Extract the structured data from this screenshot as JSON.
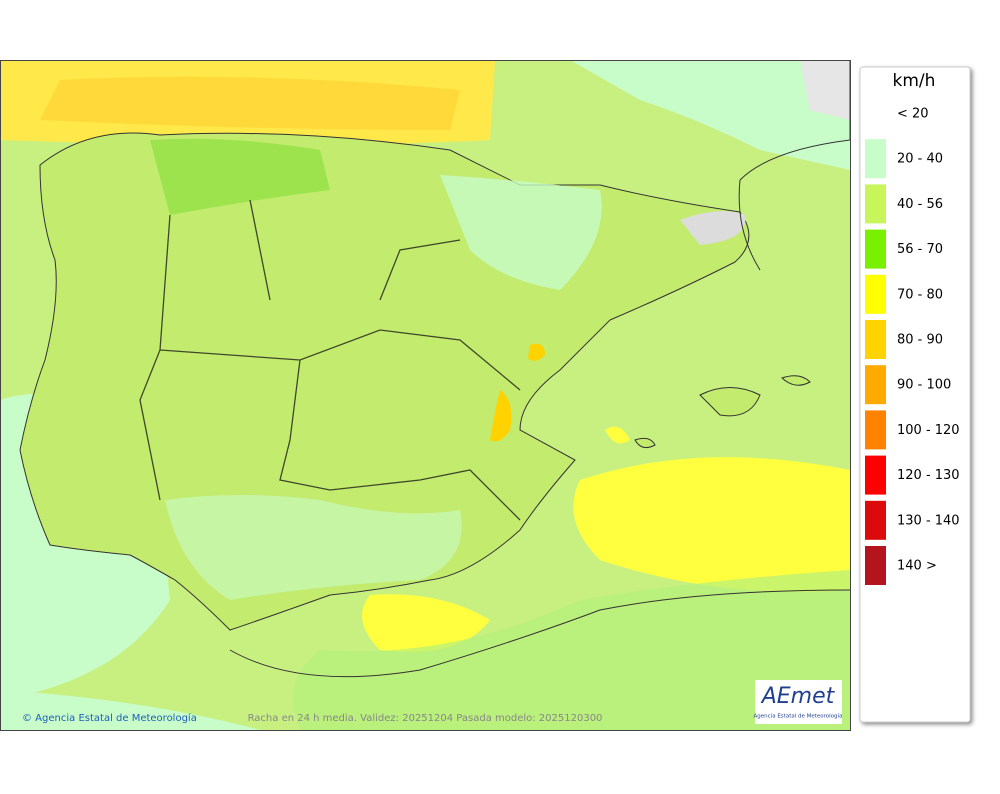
{
  "legend": {
    "title": "km/h",
    "items": [
      {
        "label": "< 20",
        "color": "#ffffff"
      },
      {
        "label": "20 - 40",
        "color": "#c8fcc8"
      },
      {
        "label": "40 - 56",
        "color": "#c8f55a"
      },
      {
        "label": "56 - 70",
        "color": "#78f000"
      },
      {
        "label": "70 - 80",
        "color": "#ffff00"
      },
      {
        "label": "80 - 90",
        "color": "#ffd200"
      },
      {
        "label": "90 - 100",
        "color": "#ffaa00"
      },
      {
        "label": "100 - 120",
        "color": "#ff8200"
      },
      {
        "label": "120 - 130",
        "color": "#ff0000"
      },
      {
        "label": "130 - 140",
        "color": "#dc0a0a"
      },
      {
        "label": "140 >",
        "color": "#b4141e"
      }
    ]
  },
  "footer": {
    "credit": "© Agencia Estatal de Meteorología",
    "caption": "Racha en 24 h media. Validez: 20251204 Pasada modelo: 2025120300"
  },
  "logo": {
    "text": "AEmet",
    "subtitle": "Agencia Estatal de Meteorología"
  }
}
